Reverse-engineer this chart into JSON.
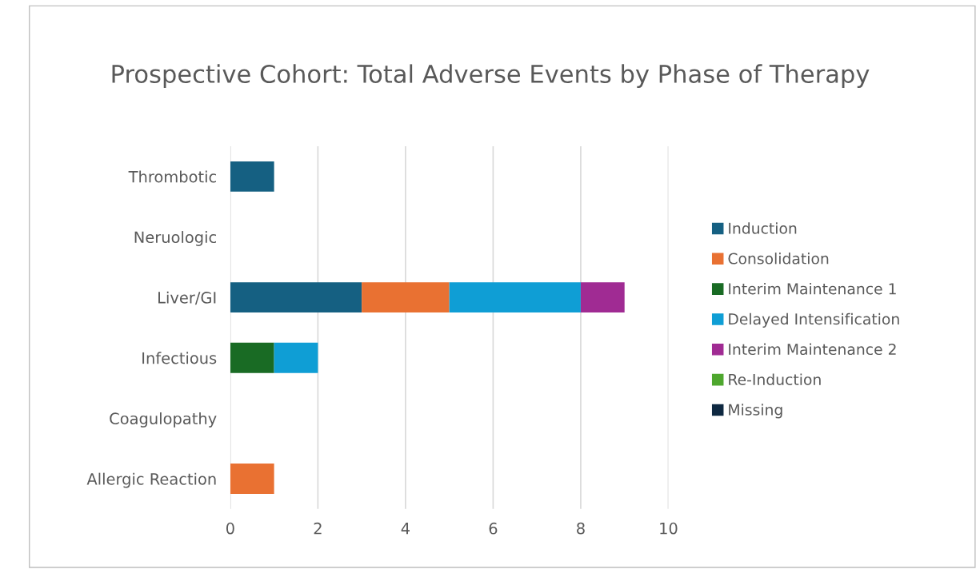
{
  "chart_data": {
    "type": "bar",
    "orientation": "horizontal",
    "stacked": true,
    "title": "Prospective Cohort: Total Adverse Events by Phase of Therapy",
    "categories": [
      "Thrombotic",
      "Neruologic",
      "Liver/GI",
      "Infectious",
      "Coagulopathy",
      "Allergic Reaction"
    ],
    "series": [
      {
        "name": "Induction",
        "color": "#156082",
        "values": [
          1,
          0,
          3,
          0,
          0,
          0
        ]
      },
      {
        "name": "Consolidation",
        "color": "#e97132",
        "values": [
          0,
          0,
          2,
          0,
          0,
          1
        ]
      },
      {
        "name": "Interim Maintenance 1",
        "color": "#196b24",
        "values": [
          0,
          0,
          0,
          1,
          0,
          0
        ]
      },
      {
        "name": "Delayed Intensification",
        "color": "#0f9ed5",
        "values": [
          0,
          0,
          3,
          1,
          0,
          0
        ]
      },
      {
        "name": "Interim Maintenance 2",
        "color": "#a02b93",
        "values": [
          0,
          0,
          1,
          0,
          0,
          0
        ]
      },
      {
        "name": "Re-Induction",
        "color": "#4ea72e",
        "values": [
          0,
          0,
          0,
          0,
          0,
          0
        ]
      },
      {
        "name": "Missing",
        "color": "#0e2841",
        "values": [
          0,
          0,
          0,
          0,
          0,
          0
        ]
      }
    ],
    "xlim": [
      0,
      10
    ],
    "xticks": [
      0,
      2,
      4,
      6,
      8,
      10
    ],
    "grid": "x",
    "legend": "right"
  }
}
